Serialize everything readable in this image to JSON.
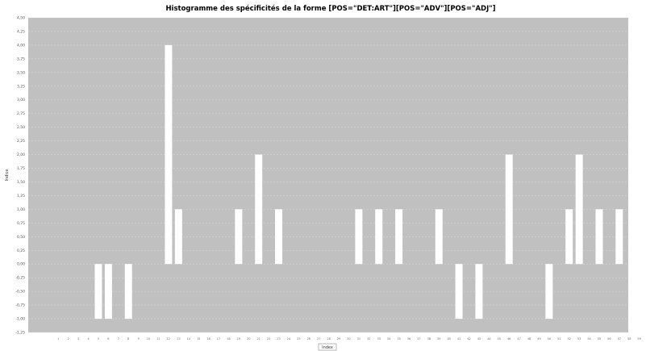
{
  "chart_data": {
    "type": "bar",
    "title": "Histogramme des spécificités de la forme [POS=\"DET:ART\"][POS=\"ADV\"][POS=\"ADJ\"]",
    "xlabel": "Index",
    "ylabel": "Indice",
    "ylim": [
      -1.25,
      4.5
    ],
    "yticks": [
      "-1,25",
      "-1,00",
      "-0,75",
      "-0,50",
      "-0,25",
      "0,00",
      "0,25",
      "0,50",
      "0,75",
      "1,00",
      "1,25",
      "1,50",
      "1,75",
      "2,00",
      "2,25",
      "2,50",
      "2,75",
      "3,00",
      "3,25",
      "3,50",
      "3,75",
      "4,00",
      "4,25",
      "4,50"
    ],
    "grid": true,
    "bar_color": "#ffffff",
    "plot_background": "#c0c0c0",
    "categories": [
      "1",
      "2",
      "3",
      "4",
      "5",
      "6",
      "7",
      "8",
      "9",
      "10",
      "11",
      "12",
      "13",
      "14",
      "15",
      "16",
      "17",
      "18",
      "19",
      "20",
      "21",
      "22",
      "23",
      "24",
      "25",
      "26",
      "27",
      "28",
      "29",
      "30",
      "31",
      "32",
      "33",
      "34",
      "35",
      "36",
      "37",
      "38",
      "39",
      "40",
      "41",
      "42",
      "43",
      "44",
      "45",
      "46",
      "47",
      "48",
      "49",
      "50",
      "51",
      "52",
      "53",
      "54",
      "55",
      "56",
      "57",
      "58",
      "59",
      "60"
    ],
    "values": [
      0,
      0,
      0,
      0,
      -1,
      -1,
      0,
      -1,
      0,
      0,
      0,
      4,
      1,
      0,
      0,
      0,
      0,
      0,
      1,
      0,
      2,
      0,
      1,
      0,
      0,
      0,
      0,
      0,
      0,
      0,
      1,
      0,
      1,
      0,
      1,
      0,
      0,
      0,
      1,
      0,
      -1,
      0,
      -1,
      0,
      0,
      2,
      0,
      0,
      0,
      -1,
      0,
      1,
      2,
      0,
      1,
      0,
      1,
      0,
      0,
      0
    ]
  }
}
